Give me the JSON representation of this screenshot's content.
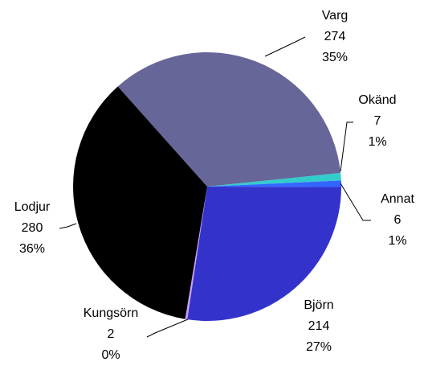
{
  "chart_data": {
    "type": "pie",
    "categories": [
      "Varg",
      "Okänd",
      "Annat",
      "Björn",
      "Kungsörn",
      "Lodjur"
    ],
    "values": [
      274,
      7,
      6,
      214,
      2,
      280
    ],
    "percent_labels": [
      "35%",
      "1%",
      "1%",
      "27%",
      "0%",
      "36%"
    ],
    "colors": [
      "#666699",
      "#33cccc",
      "#3366ff",
      "#3333cc",
      "#cc99ff",
      "#000000"
    ]
  }
}
